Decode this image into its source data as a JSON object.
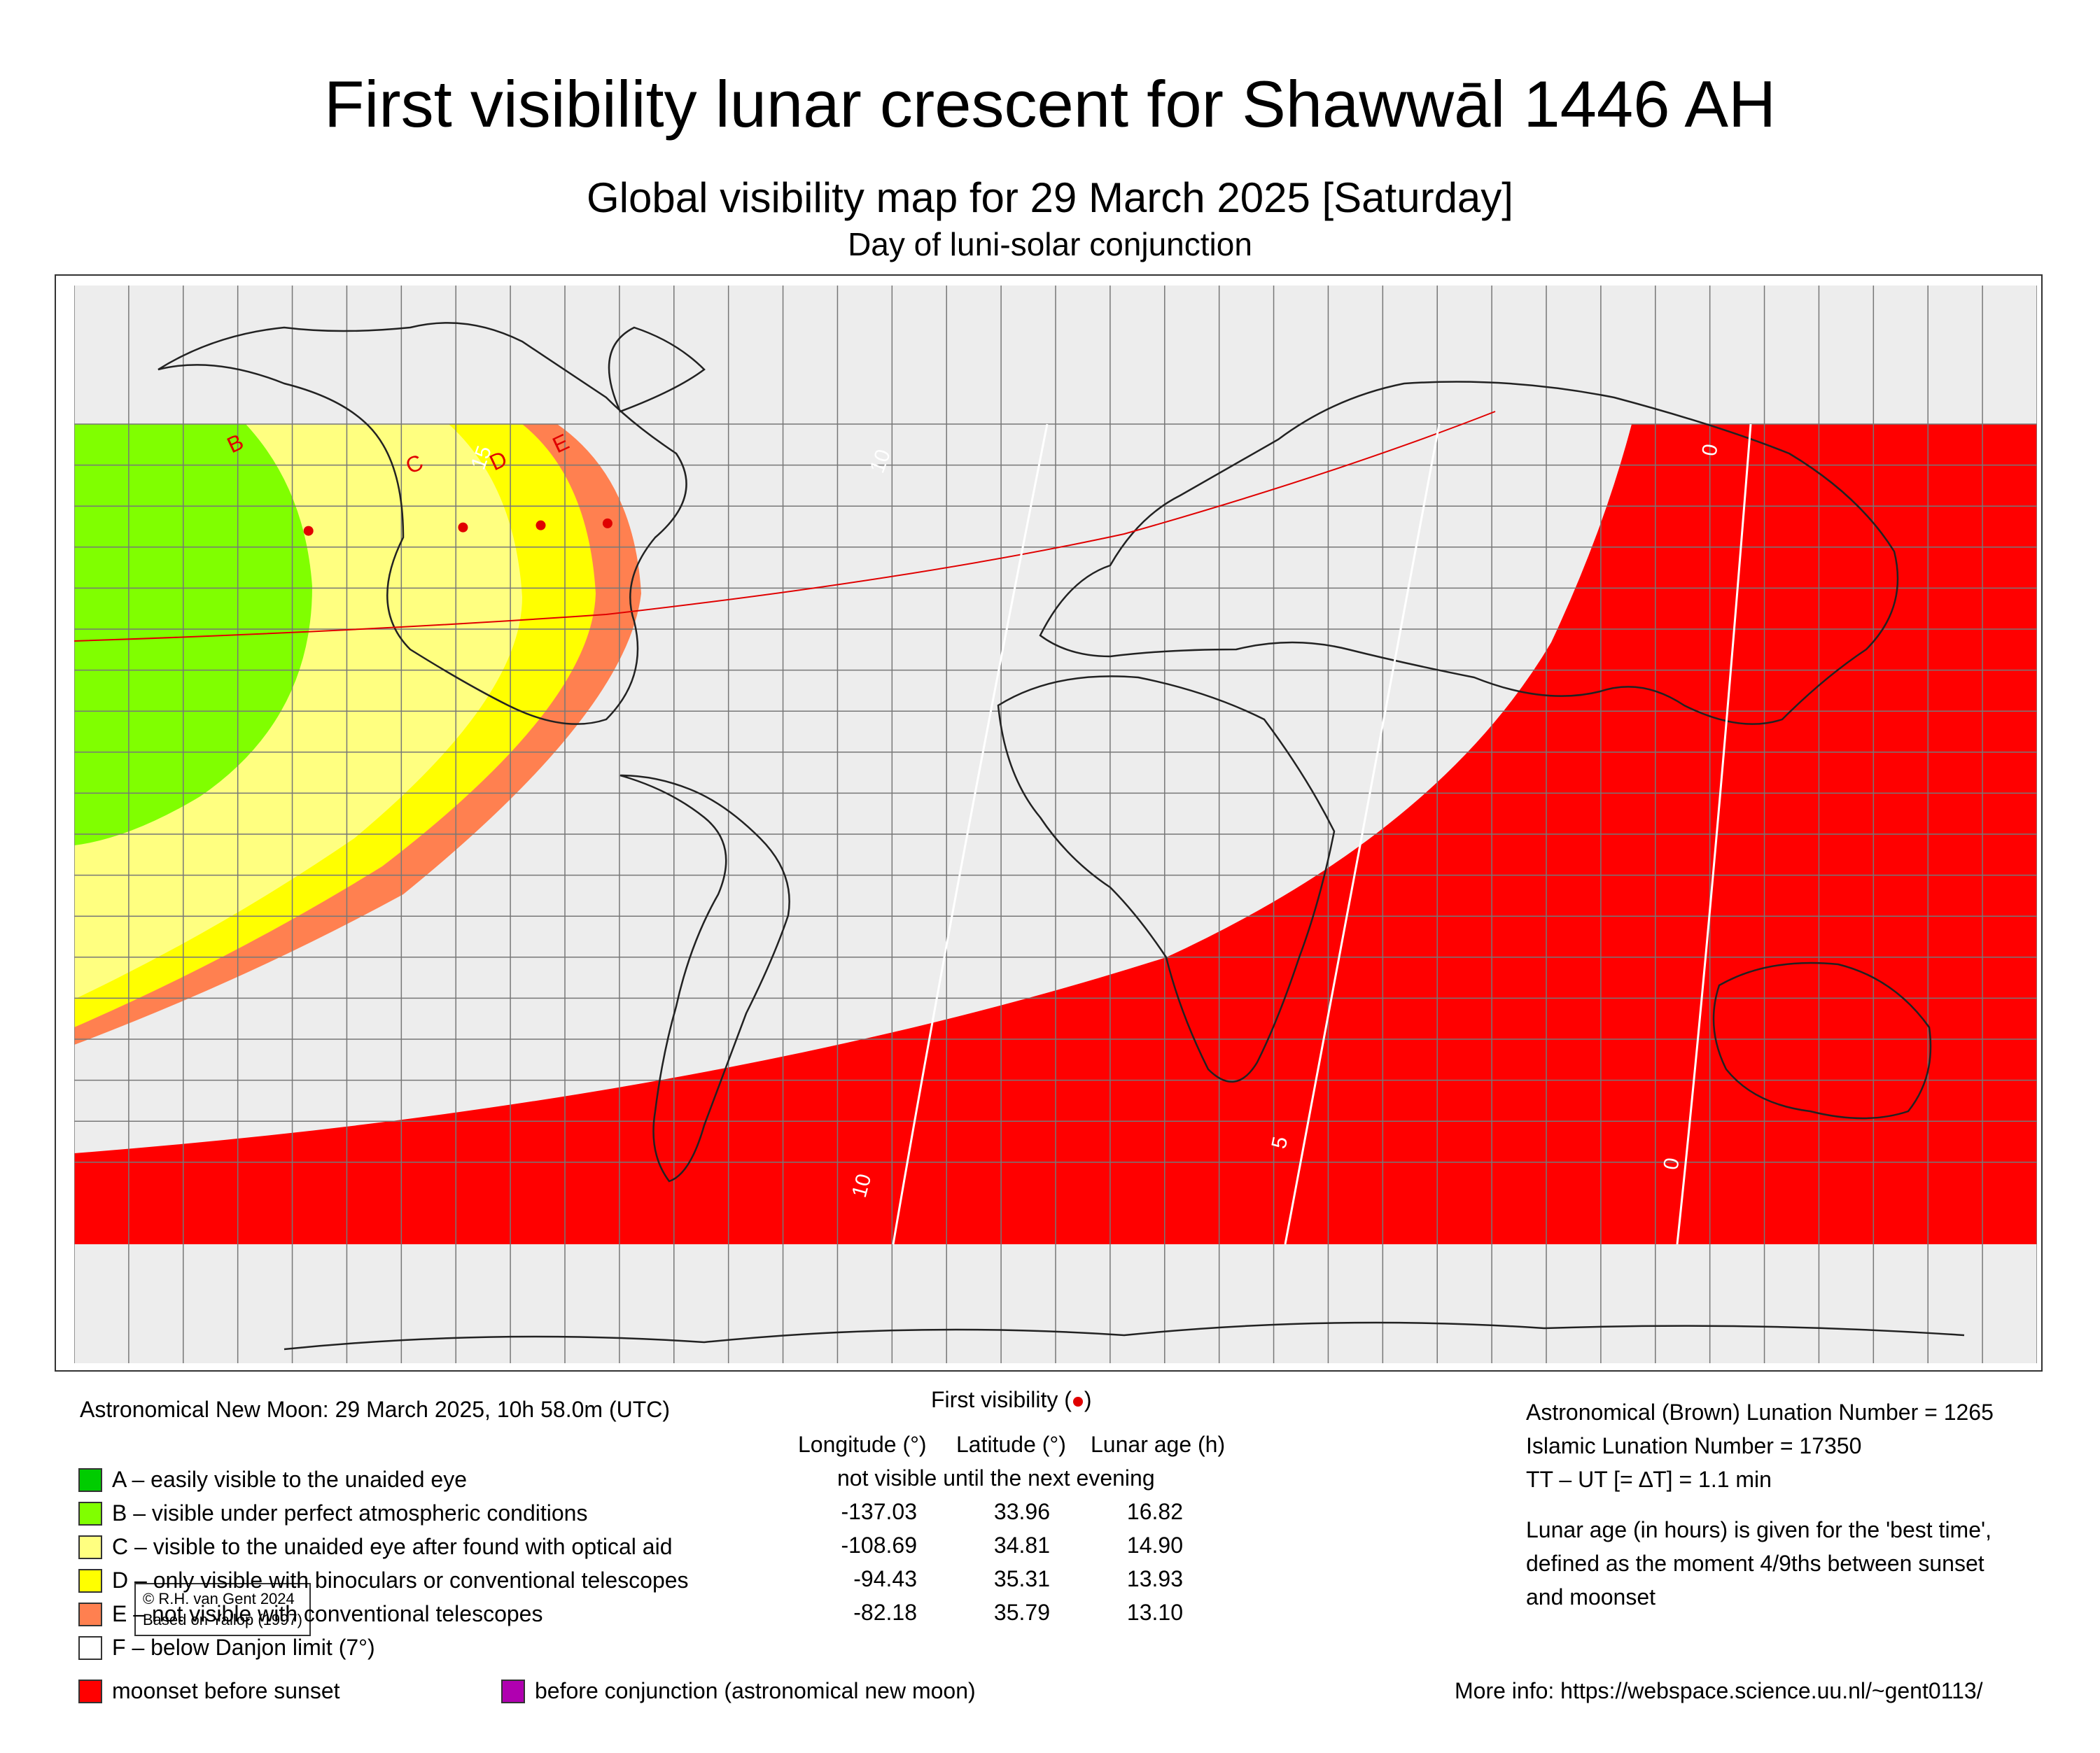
{
  "header": {
    "title": "First visibility lunar crescent for Shawwāl 1446 AH",
    "subtitle": "Global visibility map for 29 March 2025 [Saturday]",
    "subtitle2": "Day of luni-solar conjunction"
  },
  "map": {
    "credit_line1": "© R.H. van Gent 2024",
    "credit_line2": "Based on Yallop (1997)",
    "zone_labels": [
      "B",
      "C",
      "D",
      "E"
    ],
    "contour_labels": [
      "15",
      "10",
      "10",
      "5",
      "0",
      "0"
    ],
    "zone_colors": {
      "A": "#00cc00",
      "B": "#80ff00",
      "C": "#ffff80",
      "D": "#ffff00",
      "E": "#ff8050",
      "F": "#ffffff",
      "moonset_before_sunset": "#ff0000",
      "before_conjunction": "#b000b0"
    }
  },
  "info": {
    "new_moon": "Astronomical New Moon: 29 March 2025, 10h 58.0m (UTC)",
    "first_visibility_prefix": "First visibility (",
    "first_visibility_suffix": ")",
    "lunation_brown": "Astronomical (Brown) Lunation Number = 1265",
    "lunation_islamic": "Islamic Lunation Number = 17350",
    "delta_t": "TT – UT [= ∆T] = 1.1 min",
    "lunar_age_note_1": "Lunar age (in hours) is given for the 'best time',",
    "lunar_age_note_2": "defined as the moment 4/9ths between sunset",
    "lunar_age_note_3": "and moonset",
    "more_info": "More info: https://webspace.science.uu.nl/~gent0113/"
  },
  "table": {
    "headers": [
      "Longitude (°)",
      "Latitude (°)",
      "Lunar age (h)"
    ],
    "note": "not visible until the next evening",
    "rows": [
      {
        "lon": "-137.03",
        "lat": "33.96",
        "age": "16.82"
      },
      {
        "lon": "-108.69",
        "lat": "34.81",
        "age": "14.90"
      },
      {
        "lon": "-94.43",
        "lat": "35.31",
        "age": "13.93"
      },
      {
        "lon": "-82.18",
        "lat": "35.79",
        "age": "13.10"
      }
    ]
  },
  "legend": {
    "A": "A – easily visible to the unaided eye",
    "B": "B – visible under perfect atmospheric conditions",
    "C": "C – visible to the unaided eye after found with optical aid",
    "D": "D – only visible with binoculars or conventional telescopes",
    "E": "E – not visible with conventional telescopes",
    "F": "F – below Danjon limit (7°)",
    "moonset": "moonset before sunset",
    "before_conjunction": "before conjunction (astronomical new moon)"
  }
}
